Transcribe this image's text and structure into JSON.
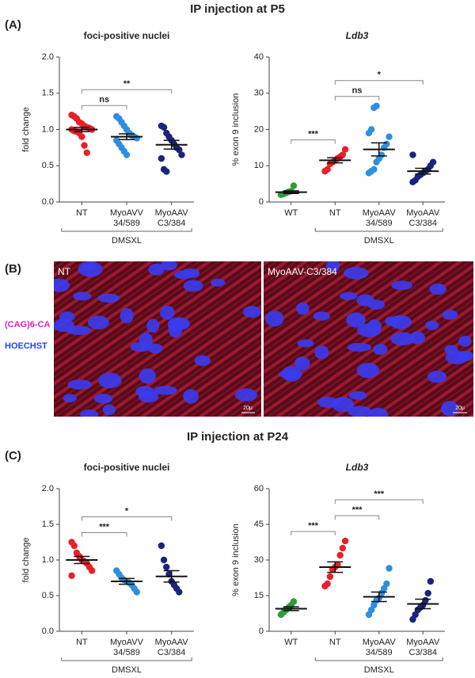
{
  "sections": [
    {
      "title": "IP injection at P5",
      "label": "(A)"
    },
    {
      "title": "IP injection at P24",
      "label": "(C)"
    }
  ],
  "panel_b": {
    "label": "(B)",
    "stain_1": "(CAG)6-CA",
    "stain_2": "HOECHST",
    "images": [
      {
        "label": "NT",
        "scale": "20μ"
      },
      {
        "label": "MyoAAV-C3/384",
        "scale": "20μ"
      }
    ]
  },
  "chart_data": [
    {
      "type": "dot",
      "title": "foci-positive nuclei",
      "ylabel": "fold change",
      "categories": [
        "NT",
        "MyoAVV 34/589",
        "MyoAAV C3/384"
      ],
      "colors": [
        "#e8202a",
        "#2f8ee0",
        "#1a237e"
      ],
      "points": [
        [
          1.2,
          1.18,
          1.15,
          1.1,
          1.08,
          1.05,
          1.03,
          1.02,
          1.0,
          1.0,
          0.98,
          0.97,
          0.95,
          0.9,
          0.78,
          0.68
        ],
        [
          1.18,
          1.15,
          1.1,
          1.05,
          1.0,
          0.95,
          0.92,
          0.9,
          0.88,
          0.85,
          0.8,
          0.75,
          0.7,
          0.65
        ],
        [
          1.05,
          1.03,
          0.95,
          0.9,
          0.85,
          0.8,
          0.75,
          0.72,
          0.65,
          0.6,
          0.45,
          0.42
        ]
      ],
      "means": [
        1.0,
        0.9,
        0.79
      ],
      "sems": [
        0.03,
        0.04,
        0.06
      ],
      "significance": [
        {
          "from": 0,
          "to": 1,
          "label": "ns"
        },
        {
          "from": 0,
          "to": 2,
          "label": "**"
        }
      ],
      "group": {
        "label": "DMSXL",
        "from": 0,
        "to": 2
      },
      "ylim": [
        0,
        2
      ],
      "yticks": [
        {
          "value": 0,
          "label": "0.0"
        },
        {
          "value": 0.5,
          "label": "0.5"
        },
        {
          "value": 1,
          "label": "1.0"
        },
        {
          "value": 1.5,
          "label": "1.5"
        },
        {
          "value": 2,
          "label": "2.0"
        }
      ]
    },
    {
      "type": "dot",
      "title": "Ldb3",
      "title_italic": true,
      "ylabel": "% exon 9 inclusion",
      "categories": [
        "WT",
        "NT",
        "MyoAAV 34/589",
        "MyoAAV C3/384"
      ],
      "colors": [
        "#2e9c3a",
        "#e8202a",
        "#2f8ee0",
        "#1a237e"
      ],
      "points": [
        [
          2.0,
          2.2,
          2.5,
          2.8,
          3.0,
          4.5
        ],
        [
          8.5,
          9,
          10.5,
          11,
          11.5,
          12,
          12.5,
          13,
          14.5
        ],
        [
          8,
          8.5,
          9,
          11,
          12,
          13,
          15,
          16,
          18,
          19,
          20,
          26,
          26.5
        ],
        [
          5.5,
          6,
          7,
          7.5,
          8,
          8.5,
          9,
          10,
          11,
          13
        ]
      ],
      "means": [
        2.7,
        11.5,
        14.5,
        8.5
      ],
      "sems": [
        0.35,
        0.7,
        1.8,
        0.8
      ],
      "significance": [
        {
          "from": 0,
          "to": 1,
          "label": "***"
        },
        {
          "from": 1,
          "to": 2,
          "label": "ns"
        },
        {
          "from": 1,
          "to": 3,
          "label": "*"
        }
      ],
      "group": {
        "label": "DMSXL",
        "from": 1,
        "to": 3
      },
      "ylim": [
        0,
        40
      ],
      "yticks": [
        0,
        10,
        20,
        30,
        40
      ]
    },
    {
      "type": "dot",
      "title": "foci-positive nuclei",
      "ylabel": "fold change",
      "categories": [
        "NT",
        "MyoAVV 34/589",
        "MyoAAV C3/384"
      ],
      "colors": [
        "#e8202a",
        "#2f8ee0",
        "#1a237e"
      ],
      "points": [
        [
          1.25,
          1.2,
          1.1,
          1.05,
          1.0,
          0.98,
          0.95,
          0.9,
          0.85,
          0.78
        ],
        [
          0.85,
          0.8,
          0.75,
          0.72,
          0.7,
          0.68,
          0.65,
          0.6,
          0.55
        ],
        [
          1.2,
          1.0,
          0.9,
          0.8,
          0.7,
          0.65,
          0.6,
          0.55
        ]
      ],
      "means": [
        1.0,
        0.7,
        0.77
      ],
      "sems": [
        0.05,
        0.04,
        0.08
      ],
      "significance": [
        {
          "from": 0,
          "to": 1,
          "label": "***"
        },
        {
          "from": 0,
          "to": 2,
          "label": "*"
        }
      ],
      "group": {
        "label": "DMSXL",
        "from": 0,
        "to": 2
      },
      "ylim": [
        0,
        2
      ],
      "yticks": [
        {
          "value": 0,
          "label": "0.0"
        },
        {
          "value": 0.5,
          "label": "0.5"
        },
        {
          "value": 1,
          "label": "1.0"
        },
        {
          "value": 1.5,
          "label": "1.5"
        },
        {
          "value": 2,
          "label": "2.0"
        }
      ]
    },
    {
      "type": "dot",
      "title": "Ldb3",
      "title_italic": true,
      "ylabel": "% exon 9 inclusion",
      "categories": [
        "WT",
        "NT",
        "MyoAAV 34/589",
        "MyoAAV C3/384"
      ],
      "colors": [
        "#2e9c3a",
        "#e8202a",
        "#2f8ee0",
        "#1a237e"
      ],
      "points": [
        [
          7,
          8,
          9,
          10,
          11,
          12.5
        ],
        [
          19,
          20,
          23,
          26,
          27,
          28,
          32,
          35,
          38
        ],
        [
          7,
          9,
          11,
          13,
          14,
          16,
          18,
          20,
          26.5
        ],
        [
          5,
          7,
          9,
          10,
          11,
          13,
          16,
          21
        ]
      ],
      "means": [
        9.5,
        27,
        14.5,
        11.5
      ],
      "sems": [
        0.8,
        2.2,
        2.0,
        2.0
      ],
      "significance": [
        {
          "from": 0,
          "to": 1,
          "label": "***"
        },
        {
          "from": 1,
          "to": 2,
          "label": "***"
        },
        {
          "from": 1,
          "to": 3,
          "label": "***"
        }
      ],
      "group": {
        "label": "DMSXL",
        "from": 1,
        "to": 3
      },
      "ylim": [
        0,
        60
      ],
      "yticks": [
        0,
        15,
        30,
        45,
        60
      ]
    }
  ]
}
